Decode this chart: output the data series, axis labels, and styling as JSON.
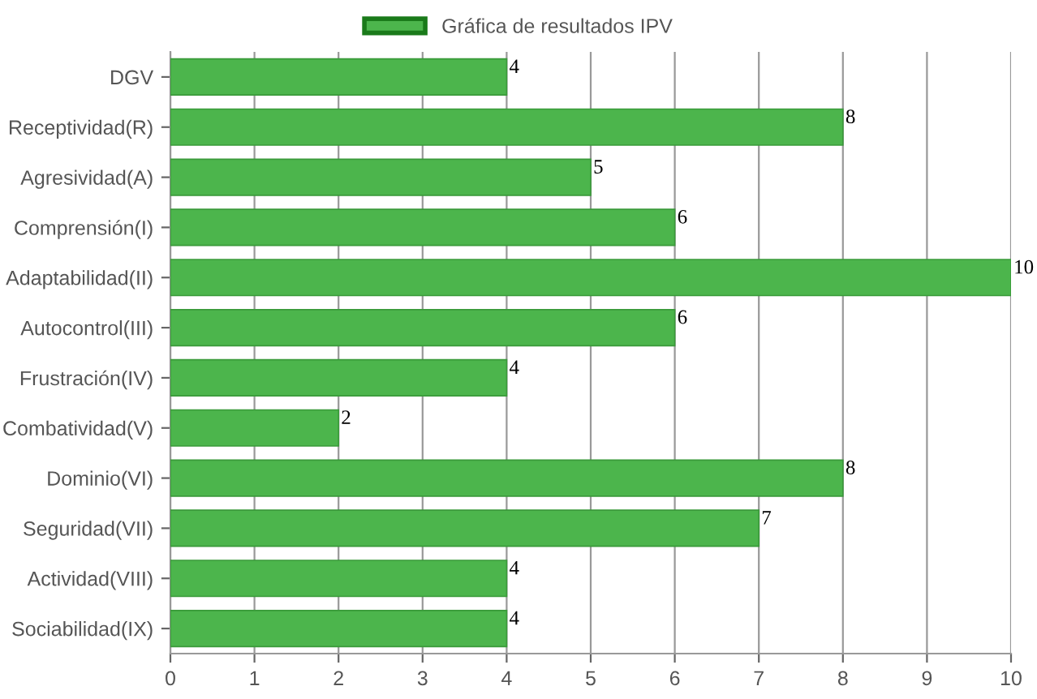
{
  "chart_data": {
    "type": "bar",
    "orientation": "horizontal",
    "categories": [
      "DGV",
      "Receptividad(R)",
      "Agresividad(A)",
      "Comprensión(I)",
      "Adaptabilidad(II)",
      "Autocontrol(III)",
      "Frustración(IV)",
      "Combatividad(V)",
      "Dominio(VI)",
      "Seguridad(VII)",
      "Actividad(VIII)",
      "Sociabilidad(IX)"
    ],
    "series": [
      {
        "name": "Gráfica de resultados IPV",
        "color": "#4cb54c",
        "values": [
          4,
          8,
          5,
          6,
          10,
          6,
          4,
          2,
          8,
          7,
          4,
          4
        ]
      }
    ],
    "xlim": [
      0,
      10
    ],
    "xticks": [
      0,
      1,
      2,
      3,
      4,
      5,
      6,
      7,
      8,
      9,
      10
    ],
    "grid": "x",
    "legend": "top",
    "data_labels": true
  }
}
